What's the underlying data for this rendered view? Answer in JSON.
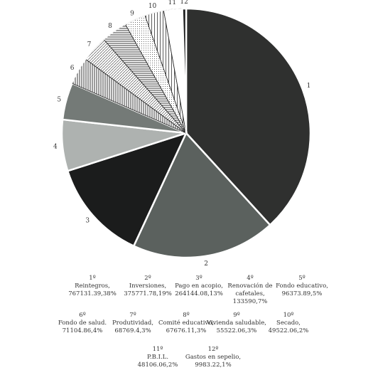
{
  "chart_data": {
    "type": "pie",
    "slices": [
      {
        "label": "1",
        "value": 767131.39,
        "color": "#2f302f",
        "pattern": "solid"
      },
      {
        "label": "2",
        "value": 375771.78,
        "color": "#5b615e",
        "pattern": "solid"
      },
      {
        "label": "3",
        "value": 264144.08,
        "color": "#1b1c1c",
        "pattern": "solid"
      },
      {
        "label": "4",
        "value": 133590,
        "color": "#aeb2b0",
        "pattern": "solid"
      },
      {
        "label": "5",
        "value": 96373.89,
        "color": "#747a77",
        "pattern": "solid"
      },
      {
        "label": "6",
        "value": 71104.86,
        "color": "#ffffff",
        "pattern": "vertical"
      },
      {
        "label": "7",
        "value": 68769.4,
        "color": "#ffffff",
        "pattern": "diagonal"
      },
      {
        "label": "8",
        "value": 67676.11,
        "color": "#ffffff",
        "pattern": "horizontal"
      },
      {
        "label": "9",
        "value": 55522.06,
        "color": "#ffffff",
        "pattern": "dots"
      },
      {
        "label": "10",
        "value": 49522.06,
        "color": "#ffffff",
        "pattern": "vertical-wide"
      },
      {
        "label": "11",
        "value": 48106.06,
        "color": "#ffffff",
        "pattern": "blank"
      },
      {
        "label": "12",
        "value": 9983.22,
        "color": "#1b1c1c",
        "pattern": "solid"
      }
    ]
  },
  "legend": [
    {
      "ordinal": "1º",
      "name": "Reintegros,",
      "value": "767131.39,38%"
    },
    {
      "ordinal": "2º",
      "name": "Inversiones,",
      "value": "375771.78,19%"
    },
    {
      "ordinal": "3º",
      "name": "Pago en acopio,",
      "value": "264144.08,13%"
    },
    {
      "ordinal": "4º",
      "name": "Renovación de",
      "name2": "cafetales,",
      "value": "133590,7%"
    },
    {
      "ordinal": "5º",
      "name": "Fondo educativo,",
      "value": "96373.89,5%"
    },
    {
      "ordinal": "6º",
      "name": "Fondo de salud.",
      "value": "71104.86,4%"
    },
    {
      "ordinal": "7º",
      "name": "Produtividad,",
      "value": "68769.4,3%"
    },
    {
      "ordinal": "8º",
      "name": "Comité educativo,",
      "value": "67676.11,3%"
    },
    {
      "ordinal": "9º",
      "name": "Vivienda saludable,",
      "value": "55522.06,3%"
    },
    {
      "ordinal": "10º",
      "name": "Secado,",
      "value": "49522.06,2%"
    },
    {
      "ordinal": "11º",
      "name": "P.B.I.L.",
      "value": "48106.06,2%"
    },
    {
      "ordinal": "12º",
      "name": "Gastos en sepelio,",
      "value": "9983.22,1%"
    }
  ]
}
